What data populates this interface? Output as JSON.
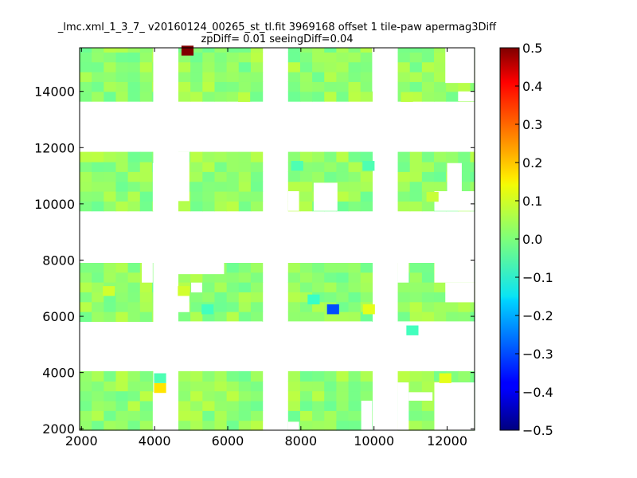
{
  "chart_data": {
    "type": "heatmap",
    "title_line1": "_lmc.xml_1_3_7_ v20160124_00265_st_tl.fit 3969168 offset 1 tile-paw apermag3Diff",
    "title_line2": "zpDiff= 0.01 seeingDiff=0.04",
    "xlabel": "",
    "ylabel": "",
    "xlim": [
      1950,
      12750
    ],
    "ylim": [
      1950,
      15550
    ],
    "x_ticks": [
      2000,
      4000,
      6000,
      8000,
      10000,
      12000
    ],
    "y_ticks": [
      2000,
      4000,
      6000,
      8000,
      10000,
      12000,
      14000
    ],
    "colorbar": {
      "colormap": "jet",
      "vmin": -0.5,
      "vmax": 0.5,
      "ticks": [
        0.5,
        0.4,
        0.3,
        0.2,
        0.1,
        0.0,
        -0.1,
        -0.2,
        -0.3,
        -0.4,
        -0.5
      ],
      "tick_labels": [
        "0.5",
        "0.4",
        "0.3",
        "0.2",
        "0.1",
        "0.0",
        "−0.1",
        "−0.2",
        "−0.3",
        "−0.4",
        "−0.5"
      ]
    },
    "tile_columns": [
      {
        "x0": 1950,
        "x1": 3950
      },
      {
        "x0": 4650,
        "x1": 6950
      },
      {
        "x0": 7650,
        "x1": 9950
      },
      {
        "x0": 10650,
        "x1": 12750
      }
    ],
    "tile_rows": [
      {
        "y0": 1950,
        "y1": 4050
      },
      {
        "y0": 5820,
        "y1": 7900
      },
      {
        "y0": 9750,
        "y1": 11850
      },
      {
        "y0": 13650,
        "y1": 15550
      }
    ],
    "cell_width": 330,
    "cell_height": 350,
    "typical_value": 0.02,
    "outliers": [
      {
        "x": 4900,
        "y": 15450,
        "value": 0.5
      },
      {
        "x": 8880,
        "y": 6250,
        "value": -0.3
      },
      {
        "x": 4150,
        "y": 3450,
        "value": 0.15
      },
      {
        "x": 9860,
        "y": 6250,
        "value": 0.1
      },
      {
        "x": 11950,
        "y": 3800,
        "value": 0.1
      },
      {
        "x": 2750,
        "y": 6900,
        "value": 0.08
      },
      {
        "x": 4800,
        "y": 6900,
        "value": 0.08
      },
      {
        "x": 8350,
        "y": 6600,
        "value": -0.07
      },
      {
        "x": 5450,
        "y": 6250,
        "value": -0.06
      },
      {
        "x": 11050,
        "y": 5500,
        "value": -0.06
      },
      {
        "x": 7900,
        "y": 11350,
        "value": -0.05
      },
      {
        "x": 9850,
        "y": 11350,
        "value": -0.05
      },
      {
        "x": 4150,
        "y": 3800,
        "value": -0.05
      },
      {
        "x": 11600,
        "y": 10250,
        "value": 0.07
      },
      {
        "x": 10900,
        "y": 13800,
        "value": 0.06
      },
      {
        "x": 6450,
        "y": 13800,
        "value": 0.06
      }
    ],
    "gaps": [
      {
        "x0": 4450,
        "x1": 4650,
        "y0": 14650,
        "y1": 15550
      },
      {
        "x0": 9950,
        "x1": 10400,
        "y0": 14000,
        "y1": 15550
      },
      {
        "x0": 11950,
        "x1": 12750,
        "y0": 14300,
        "y1": 15550
      },
      {
        "x0": 12300,
        "x1": 12750,
        "y0": 13650,
        "y1": 14000
      },
      {
        "x0": 3950,
        "x1": 4650,
        "y0": 9750,
        "y1": 11450
      },
      {
        "x0": 4650,
        "x1": 4950,
        "y0": 10100,
        "y1": 11850
      },
      {
        "x0": 8350,
        "x1": 9000,
        "y0": 9750,
        "y1": 10750
      },
      {
        "x0": 7650,
        "x1": 7950,
        "y0": 9750,
        "y1": 10450
      },
      {
        "x0": 11650,
        "x1": 12750,
        "y0": 9750,
        "y1": 10450
      },
      {
        "x0": 12000,
        "x1": 12400,
        "y0": 10450,
        "y1": 11450
      },
      {
        "x0": 3650,
        "x1": 3950,
        "y0": 7200,
        "y1": 7900
      },
      {
        "x0": 4650,
        "x1": 5900,
        "y0": 7500,
        "y1": 7900
      },
      {
        "x0": 5000,
        "x1": 5300,
        "y0": 6850,
        "y1": 7200
      },
      {
        "x0": 4650,
        "x1": 4950,
        "y0": 6150,
        "y1": 6850
      },
      {
        "x0": 4650,
        "x1": 6950,
        "y0": 5500,
        "y1": 5820
      },
      {
        "x0": 7650,
        "x1": 9950,
        "y0": 5500,
        "y1": 5820
      },
      {
        "x0": 10650,
        "x1": 12750,
        "y0": 5500,
        "y1": 5820
      },
      {
        "x0": 10650,
        "x1": 10950,
        "y0": 7200,
        "y1": 7900
      },
      {
        "x0": 11650,
        "x1": 12750,
        "y0": 7200,
        "y1": 7900
      },
      {
        "x0": 11950,
        "x1": 12750,
        "y0": 6500,
        "y1": 7200
      },
      {
        "x0": 3950,
        "x1": 4650,
        "y0": 1950,
        "y1": 3300
      },
      {
        "x0": 9650,
        "x1": 9950,
        "y0": 1950,
        "y1": 3000
      },
      {
        "x0": 10650,
        "x1": 10950,
        "y0": 1950,
        "y1": 3650
      },
      {
        "x0": 10950,
        "x1": 11600,
        "y0": 3000,
        "y1": 3300
      },
      {
        "x0": 11650,
        "x1": 12750,
        "y0": 1950,
        "y1": 3650
      },
      {
        "x0": 7650,
        "x1": 7950,
        "y0": 1950,
        "y1": 2250
      }
    ]
  }
}
